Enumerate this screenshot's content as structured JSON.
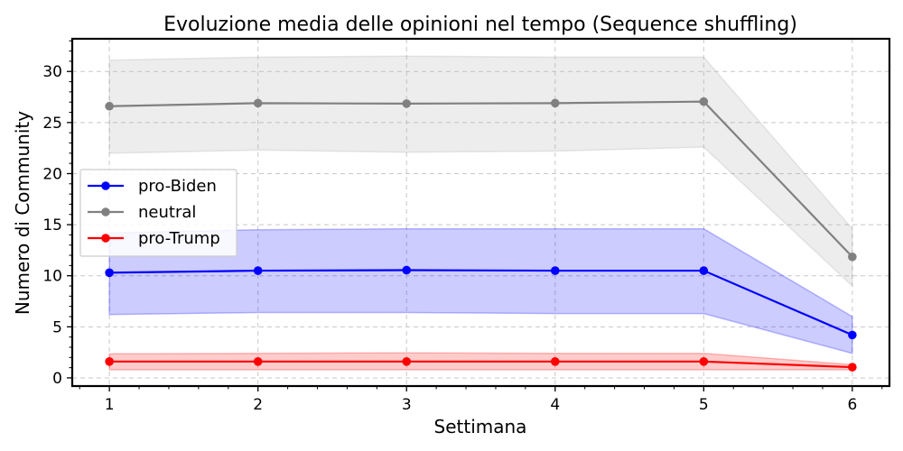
{
  "chart_data": {
    "type": "line",
    "title": "Evoluzione media delle opinioni nel tempo (Sequence shuffling)",
    "xlabel": "Settimana",
    "ylabel": "Numero di Community",
    "x": [
      1,
      2,
      3,
      4,
      5,
      6
    ],
    "xlim": [
      0.75,
      6.25
    ],
    "ylim": [
      -0.8,
      33.2
    ],
    "xticks": [
      1,
      2,
      3,
      4,
      5,
      6
    ],
    "yticks": [
      0,
      5,
      10,
      15,
      20,
      25,
      30
    ],
    "grid": true,
    "legend_position": "center-left",
    "series": [
      {
        "name": "pro-Biden",
        "color": "#0000ff",
        "band_color": "#0000ff",
        "values": [
          10.3,
          10.5,
          10.55,
          10.5,
          10.5,
          4.2
        ],
        "lower": [
          6.2,
          6.4,
          6.4,
          6.3,
          6.3,
          2.4
        ],
        "upper": [
          14.2,
          14.5,
          14.6,
          14.6,
          14.6,
          6.0
        ]
      },
      {
        "name": "neutral",
        "color": "#808080",
        "band_color": "#a6a6a6",
        "values": [
          26.6,
          26.9,
          26.85,
          26.9,
          27.05,
          11.85
        ],
        "lower": [
          22.0,
          22.3,
          22.1,
          22.2,
          22.6,
          9.0
        ],
        "upper": [
          31.1,
          31.4,
          31.5,
          31.4,
          31.4,
          14.6
        ]
      },
      {
        "name": "pro-Trump",
        "color": "#ff0000",
        "band_color": "#ff0000",
        "values": [
          1.6,
          1.6,
          1.6,
          1.6,
          1.6,
          1.05
        ],
        "lower": [
          0.8,
          0.8,
          0.8,
          0.8,
          0.8,
          0.8
        ],
        "upper": [
          2.35,
          2.4,
          2.45,
          2.4,
          2.4,
          1.3
        ]
      }
    ]
  }
}
